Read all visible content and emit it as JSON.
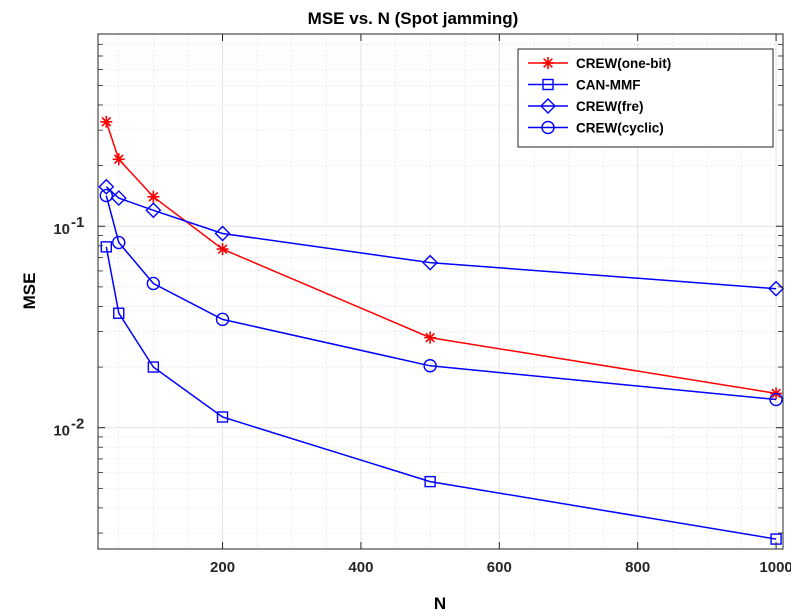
{
  "chart_data": {
    "type": "line",
    "title": "MSE vs. N (Spot jamming)",
    "xlabel": "N",
    "ylabel": "MSE",
    "xlim": [
      20,
      1010
    ],
    "ylim": [
      0.0025,
      0.9
    ],
    "yscale": "log",
    "grid": true,
    "minor_grid": true,
    "legend_position": "top-right",
    "x_ticks": [
      200,
      400,
      600,
      800,
      1000
    ],
    "y_ticks": [
      {
        "value": 0.01,
        "base": "10",
        "exp": "-2"
      },
      {
        "value": 0.1,
        "base": "10",
        "exp": "-1"
      }
    ],
    "x": [
      32,
      50,
      100,
      200,
      500,
      1000
    ],
    "series": [
      {
        "name": "CREW(one-bit)",
        "color": "#ff0000",
        "marker": "star",
        "values": [
          0.33,
          0.215,
          0.14,
          0.077,
          0.028,
          0.0148
        ]
      },
      {
        "name": "CAN-MMF",
        "color": "#0000ff",
        "marker": "square",
        "values": [
          0.079,
          0.037,
          0.02,
          0.0113,
          0.0054,
          0.0028
        ]
      },
      {
        "name": "CREW(fre)",
        "color": "#0000ff",
        "marker": "diamond",
        "values": [
          0.157,
          0.138,
          0.12,
          0.092,
          0.066,
          0.049
        ]
      },
      {
        "name": "CREW(cyclic)",
        "color": "#0000ff",
        "marker": "circle",
        "values": [
          0.142,
          0.083,
          0.052,
          0.0345,
          0.0203,
          0.0138
        ]
      }
    ]
  }
}
